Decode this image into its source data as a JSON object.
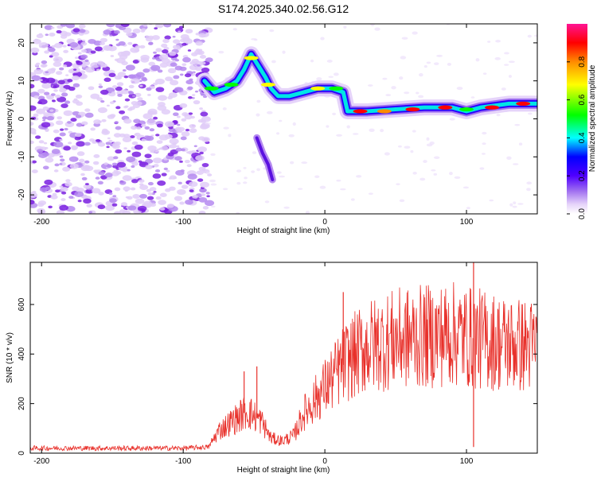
{
  "figure": {
    "title": "S174.2025.340.02.56.G12"
  },
  "chart_data": [
    {
      "type": "heatmap",
      "name": "spectrogram",
      "title": "S174.2025.340.02.56.G12",
      "xlabel": "Height of straight line (km)",
      "ylabel": "Frequency (Hz)",
      "xlim": [
        -208,
        150
      ],
      "ylim": [
        -25,
        25
      ],
      "xticks": [
        -200,
        -100,
        0,
        100
      ],
      "yticks": [
        -20,
        -10,
        0,
        10,
        20
      ],
      "colorbar": {
        "label": "Normalized spectral amplitude",
        "range": [
          0.0,
          1.0
        ],
        "ticks": [
          0.0,
          0.2,
          0.4,
          0.6,
          0.8
        ],
        "colormap": [
          "#ffffff",
          "#e8d8f8",
          "#8a2be2",
          "#4b00ff",
          "#0000ff",
          "#00ffff",
          "#00ff00",
          "#ffff00",
          "#ff8c00",
          "#ff0000",
          "#ff1493"
        ]
      },
      "noise_region_x": [
        -208,
        -85
      ],
      "ridge": [
        {
          "x": -85,
          "f": 10
        },
        {
          "x": -78,
          "f": 7
        },
        {
          "x": -70,
          "f": 8
        },
        {
          "x": -62,
          "f": 10
        },
        {
          "x": -57,
          "f": 13
        },
        {
          "x": -52,
          "f": 17
        },
        {
          "x": -47,
          "f": 14
        },
        {
          "x": -42,
          "f": 11
        },
        {
          "x": -38,
          "f": 8
        },
        {
          "x": -33,
          "f": 6
        },
        {
          "x": -25,
          "f": 6
        },
        {
          "x": -15,
          "f": 7
        },
        {
          "x": -5,
          "f": 8
        },
        {
          "x": 5,
          "f": 8
        },
        {
          "x": 13,
          "f": 7
        },
        {
          "x": 16,
          "f": 2
        },
        {
          "x": 30,
          "f": 2
        },
        {
          "x": 50,
          "f": 2.5
        },
        {
          "x": 70,
          "f": 3
        },
        {
          "x": 90,
          "f": 3
        },
        {
          "x": 100,
          "f": 2
        },
        {
          "x": 110,
          "f": 3
        },
        {
          "x": 130,
          "f": 4
        },
        {
          "x": 150,
          "f": 4
        }
      ],
      "secondary_branch": [
        {
          "x": -48,
          "f": -5
        },
        {
          "x": -44,
          "f": -9
        },
        {
          "x": -40,
          "f": -12
        },
        {
          "x": -37,
          "f": -16
        }
      ]
    },
    {
      "type": "line",
      "name": "snr",
      "xlabel": "Height of straight line (km)",
      "ylabel": "SNR (10 * v/v)",
      "xlim": [
        -208,
        150
      ],
      "ylim": [
        0,
        770
      ],
      "xticks": [
        -200,
        -100,
        0,
        100
      ],
      "yticks": [
        0,
        200,
        400,
        600
      ],
      "line_color": "#e8302a",
      "envelope": [
        {
          "x": -208,
          "y": 20
        },
        {
          "x": -100,
          "y": 20
        },
        {
          "x": -82,
          "y": 25
        },
        {
          "x": -75,
          "y": 90
        },
        {
          "x": -65,
          "y": 130
        },
        {
          "x": -55,
          "y": 170
        },
        {
          "x": -45,
          "y": 130
        },
        {
          "x": -38,
          "y": 60
        },
        {
          "x": -30,
          "y": 50
        },
        {
          "x": -22,
          "y": 70
        },
        {
          "x": -15,
          "y": 160
        },
        {
          "x": -5,
          "y": 230
        },
        {
          "x": 5,
          "y": 300
        },
        {
          "x": 15,
          "y": 370
        },
        {
          "x": 30,
          "y": 430
        },
        {
          "x": 50,
          "y": 460
        },
        {
          "x": 70,
          "y": 470
        },
        {
          "x": 90,
          "y": 480
        },
        {
          "x": 110,
          "y": 460
        },
        {
          "x": 130,
          "y": 440
        },
        {
          "x": 150,
          "y": 430
        }
      ],
      "spikes": [
        {
          "x": -57,
          "y": 330
        },
        {
          "x": -48,
          "y": 350
        },
        {
          "x": 13,
          "y": 650
        },
        {
          "x": 105,
          "y": 770
        },
        {
          "x": 105,
          "y": 25
        }
      ]
    }
  ]
}
